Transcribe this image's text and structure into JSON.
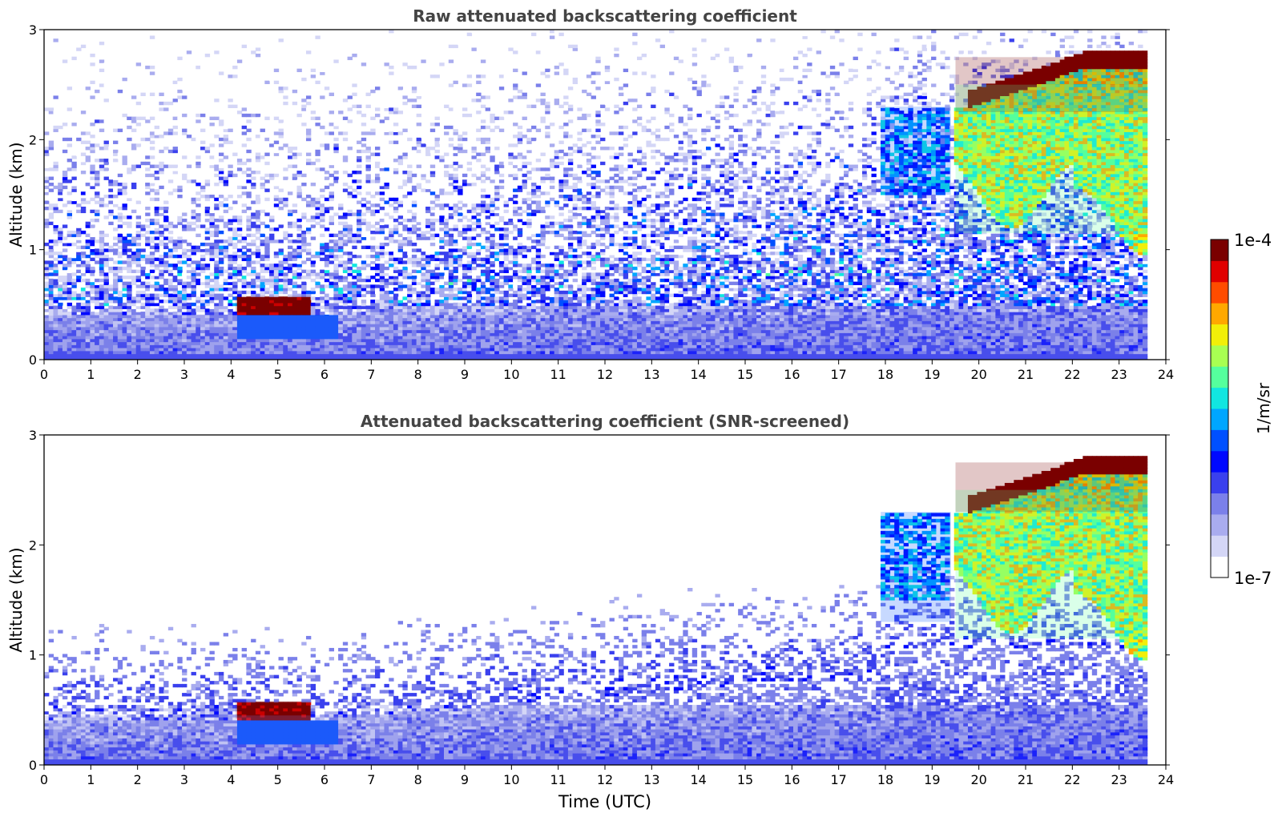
{
  "figure": {
    "colorbar": {
      "max_label": "1e-4",
      "min_label": "1e-7",
      "unit_label": "1/m/sr",
      "colormap": [
        "#ffffff",
        "#d4d6f6",
        "#a9acef",
        "#7b80ea",
        "#3a40ee",
        "#0008ff",
        "#0050ff",
        "#00a6ff",
        "#11e6e0",
        "#55ff9d",
        "#a8ff52",
        "#f2ef08",
        "#ffa800",
        "#ff4c00",
        "#e00000",
        "#7a0000"
      ]
    }
  },
  "chart_data": [
    {
      "type": "heatmap",
      "title": "Raw attenuated backscattering coefficient",
      "xlabel": "",
      "ylabel": "Altitude (km)",
      "xlim": [
        0,
        24
      ],
      "ylim": [
        0,
        3
      ],
      "xticks": [
        "0",
        "1",
        "2",
        "3",
        "4",
        "5",
        "6",
        "7",
        "8",
        "9",
        "10",
        "11",
        "12",
        "13",
        "14",
        "15",
        "16",
        "17",
        "18",
        "19",
        "20",
        "21",
        "22",
        "23",
        "24"
      ],
      "yticks": [
        "0",
        "1",
        "2",
        "3"
      ],
      "color_scale": "log",
      "value_range": [
        1e-07,
        0.0001
      ],
      "data_end_time": 23.6,
      "features": [
        {
          "time": [
            4.1,
            5.7
          ],
          "altitude": [
            0.42,
            0.58
          ],
          "log10_value": -4.0
        },
        {
          "time": [
            19.5,
            23.6
          ],
          "altitude": [
            2.25,
            2.75
          ],
          "log10_value": -4.0
        },
        {
          "time": [
            19.5,
            23.6
          ],
          "altitude": [
            1.15,
            2.5
          ],
          "log10_value": -5.2
        },
        {
          "time": [
            17.9,
            19.4
          ],
          "altitude": [
            1.5,
            2.3
          ],
          "log10_value": -5.8
        },
        {
          "time": [
            0.0,
            23.6
          ],
          "altitude": [
            0.0,
            0.4
          ],
          "log10_value": -6.4
        }
      ]
    },
    {
      "type": "heatmap",
      "title": "Attenuated backscattering coefficient (SNR-screened)",
      "xlabel": "Time (UTC)",
      "ylabel": "Altitude (km)",
      "xlim": [
        0,
        24
      ],
      "ylim": [
        0,
        3
      ],
      "xticks": [
        "0",
        "1",
        "2",
        "3",
        "4",
        "5",
        "6",
        "7",
        "8",
        "9",
        "10",
        "11",
        "12",
        "13",
        "14",
        "15",
        "16",
        "17",
        "18",
        "19",
        "20",
        "21",
        "22",
        "23",
        "24"
      ],
      "yticks": [
        "0",
        "1",
        "2",
        "3"
      ],
      "color_scale": "log",
      "value_range": [
        1e-07,
        0.0001
      ],
      "data_end_time": 23.6,
      "features": [
        {
          "time": [
            4.1,
            5.7
          ],
          "altitude": [
            0.42,
            0.58
          ],
          "log10_value": -4.0
        },
        {
          "time": [
            19.5,
            23.6
          ],
          "altitude": [
            2.3,
            2.75
          ],
          "log10_value": -4.0
        },
        {
          "time": [
            19.5,
            23.6
          ],
          "altitude": [
            1.15,
            2.5
          ],
          "log10_value": -5.2
        },
        {
          "time": [
            17.9,
            19.4
          ],
          "altitude": [
            1.3,
            2.3
          ],
          "log10_value": -5.8
        },
        {
          "time": [
            0.0,
            23.6
          ],
          "altitude": [
            0.0,
            0.45
          ],
          "log10_value": -6.4
        }
      ]
    }
  ]
}
